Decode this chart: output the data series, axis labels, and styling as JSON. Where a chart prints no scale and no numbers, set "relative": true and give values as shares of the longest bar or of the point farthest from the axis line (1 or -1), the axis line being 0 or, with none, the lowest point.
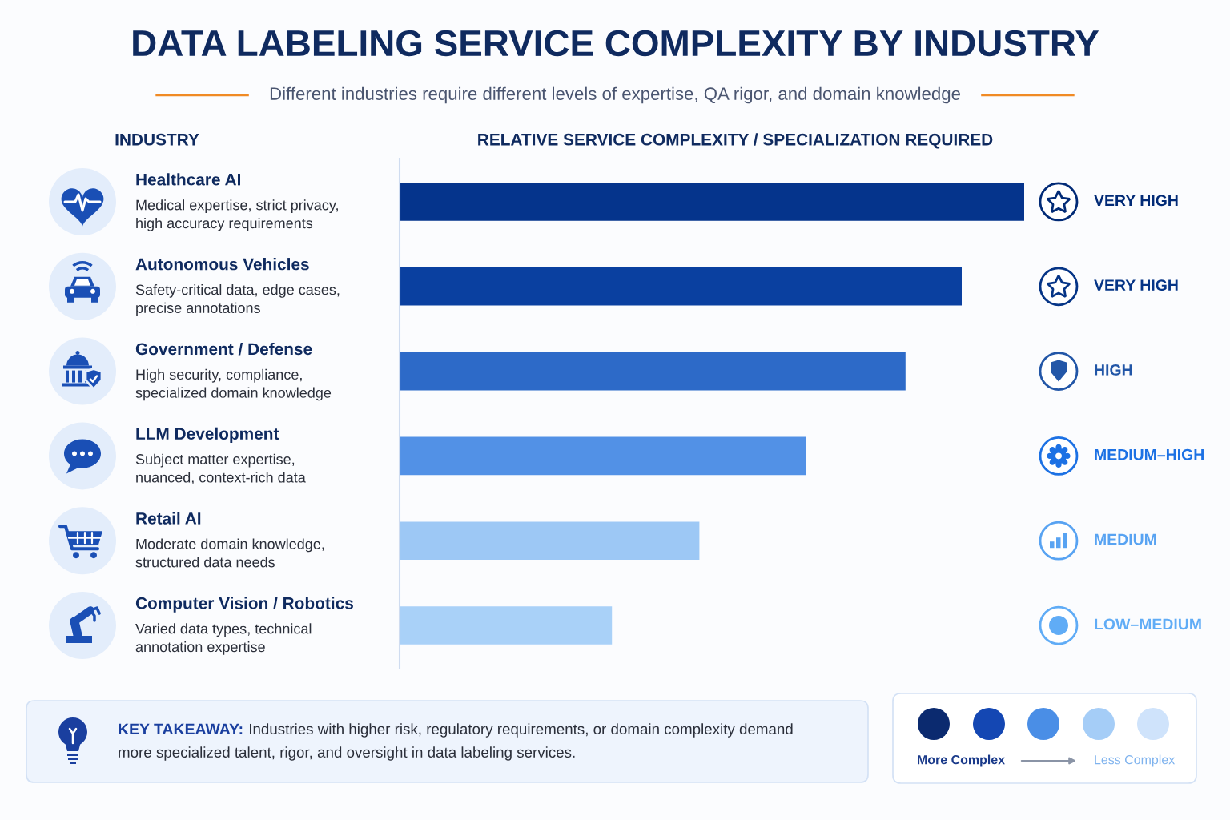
{
  "chart_data": {
    "type": "bar",
    "orientation": "horizontal",
    "relative": true,
    "title": "DATA LABELING SERVICE COMPLEXITY BY INDUSTRY",
    "subtitle": "Different industries require different levels of expertise, QA rigor, and domain knowledge",
    "xlabel": "RELATIVE SERVICE COMPLEXITY / SPECIALIZATION REQUIRED",
    "ylabel": "INDUSTRY",
    "categories": [
      "Healthcare AI\nMedical expertise, strict privacy,\nhigh accuracy requirements",
      "Autonomous Vehicles\nSafety-critical data, edge cases,\nprecise annotations",
      "Government / Defense\nHigh security, compliance,\nspecialized domain knowledge",
      "LLM Development\nSubject matter expertise,\nnuanced, context-rich data",
      "Retail AI\nModerate domain knowledge,\nstructured data needs",
      "Computer Vision / Robotics\nVaried data types, technical\nannotation expertise"
    ],
    "y2_categories": [
      "VERY HIGH",
      "VERY HIGH",
      "HIGH",
      "MEDIUM–HIGH",
      "MEDIUM",
      "LOW–MEDIUM"
    ],
    "values": [
      1,
      0.9,
      0.81,
      0.65,
      0.48,
      0.34
    ],
    "colors": [
      "#05348c",
      "#0a40a0",
      "#2d6ac8",
      "#5291e6",
      "#9dc8f5",
      "#a9d1f8"
    ],
    "annotations": [
      "KEY TAKEAWAY:",
      "Industries with higher risk, regulatory requirements, or domain complexity demand",
      "more specialized talent, rigor, and oversight in data labeling services.",
      "More Complex",
      "Less Complex"
    ]
  }
}
